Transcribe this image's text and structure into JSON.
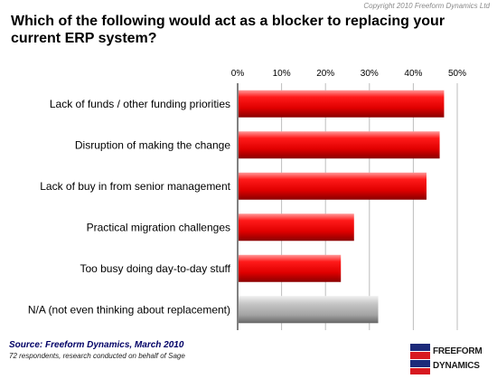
{
  "copyright": "Copyright 2010 Freeform Dynamics Ltd",
  "title": "Which of the following would act as a blocker to replacing your current ERP system?",
  "source": "Source: Freeform Dynamics, March 2010",
  "note": "72 respondents, research conducted on behalf of Sage",
  "logo": {
    "line1": "FREEFORM",
    "line2": "DYNAMICS"
  },
  "colors": {
    "bar": "#e60000",
    "bar_na": "#a8a8a8",
    "logo_blue": "#1c2a7a",
    "logo_red": "#d71920"
  },
  "chart_data": {
    "type": "bar",
    "orientation": "horizontal",
    "categories": [
      "Lack of funds / other funding priorities",
      "Disruption of making the change",
      "Lack of buy in from senior management",
      "Practical migration challenges",
      "Too busy doing day-to-day stuff",
      "N/A (not even thinking about replacement)"
    ],
    "values": [
      47,
      46,
      43,
      26.5,
      23.5,
      32
    ],
    "xlim": [
      0,
      50
    ],
    "ticks": [
      "0%",
      "10%",
      "20%",
      "30%",
      "40%",
      "50%"
    ],
    "tick_values": [
      0,
      10,
      20,
      30,
      40,
      50
    ],
    "grid": true
  }
}
